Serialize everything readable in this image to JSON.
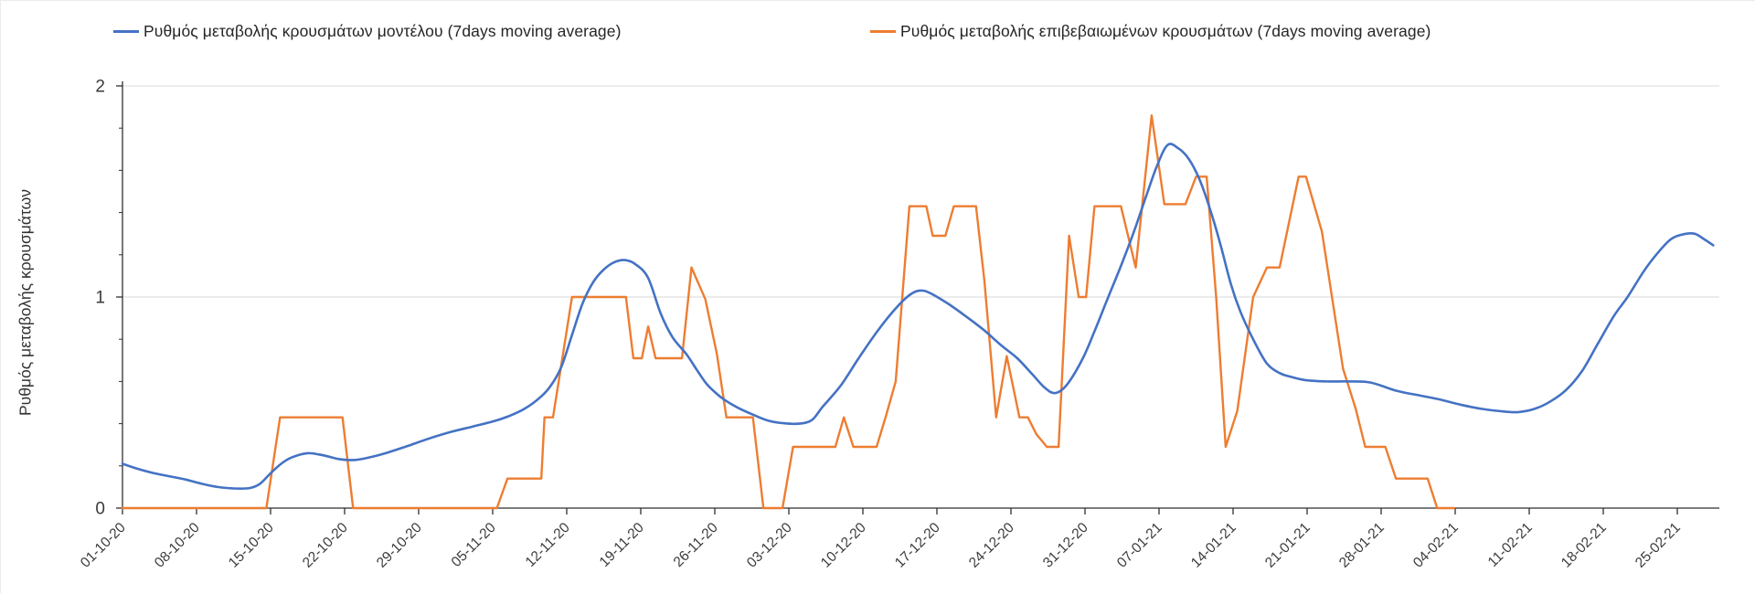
{
  "legend": {
    "items": [
      {
        "label": "Ρυθμός μεταβολής κρουσμάτων μοντέλου (7days moving average)",
        "color": "#4472C4"
      },
      {
        "label": "Ρυθμός μεταβολής επιβεβαιωμένων κρουσμάτων (7days moving average)",
        "color": "#ED7D31"
      }
    ]
  },
  "colors": {
    "model_line": "#4472C4",
    "confirmed_line": "#ED7D31",
    "gridline": "#d9d9d9",
    "axis": "#2f2f2f",
    "tick_text": "#3a3a3a"
  },
  "chart_data": {
    "type": "line",
    "title": "",
    "xlabel": "",
    "ylabel": "Ρυθμός μεταβολής κρουσμάτων",
    "ylim": [
      0,
      2
    ],
    "y_ticks": [
      0,
      1,
      2
    ],
    "y_tick_labels": [
      "0",
      "1",
      "2"
    ],
    "y_minor_tick_step": 0.2,
    "grid": "horizontal-only",
    "legend_position": "top",
    "x_unit": "day index, day 0 = 01-10-20, one tick per 7 days",
    "x_tick_labels": [
      "01-10-20",
      "08-10-20",
      "15-10-20",
      "22-10-20",
      "29-10-20",
      "05-11-20",
      "12-11-20",
      "19-11-20",
      "26-11-20",
      "03-12-20",
      "10-12-20",
      "17-12-20",
      "24-12-20",
      "31-12-20",
      "07-01-21",
      "14-01-21",
      "21-01-21",
      "28-01-21",
      "04-02-21",
      "11-02-21",
      "18-02-21",
      "25-02-21"
    ],
    "series": [
      {
        "name": "Ρυθμός μεταβολής κρουσμάτων μοντέλου (7days moving average)",
        "color": "#4472C4",
        "smooth": true,
        "points": [
          [
            0,
            0.21
          ],
          [
            1.5,
            0.185
          ],
          [
            3,
            0.165
          ],
          [
            4.5,
            0.15
          ],
          [
            6,
            0.135
          ],
          [
            7.5,
            0.115
          ],
          [
            9,
            0.1
          ],
          [
            10.5,
            0.093
          ],
          [
            12,
            0.095
          ],
          [
            13,
            0.115
          ],
          [
            14,
            0.165
          ],
          [
            15,
            0.21
          ],
          [
            16,
            0.24
          ],
          [
            17.5,
            0.26
          ],
          [
            19,
            0.25
          ],
          [
            20.5,
            0.232
          ],
          [
            22,
            0.228
          ],
          [
            23.5,
            0.242
          ],
          [
            25,
            0.262
          ],
          [
            27,
            0.295
          ],
          [
            29,
            0.33
          ],
          [
            31,
            0.36
          ],
          [
            33,
            0.385
          ],
          [
            35,
            0.41
          ],
          [
            36.5,
            0.435
          ],
          [
            38,
            0.47
          ],
          [
            39.5,
            0.525
          ],
          [
            40.5,
            0.58
          ],
          [
            41.5,
            0.67
          ],
          [
            42.5,
            0.82
          ],
          [
            43.5,
            0.97
          ],
          [
            44.5,
            1.07
          ],
          [
            45.5,
            1.13
          ],
          [
            46.5,
            1.165
          ],
          [
            47.5,
            1.175
          ],
          [
            48.5,
            1.155
          ],
          [
            49.7,
            1.09
          ],
          [
            50.9,
            0.92
          ],
          [
            52,
            0.81
          ],
          [
            53.3,
            0.73
          ],
          [
            54.3,
            0.655
          ],
          [
            55.2,
            0.59
          ],
          [
            56.1,
            0.545
          ],
          [
            57,
            0.51
          ],
          [
            58.2,
            0.475
          ],
          [
            59.5,
            0.445
          ],
          [
            61,
            0.415
          ],
          [
            62.5,
            0.402
          ],
          [
            64,
            0.4
          ],
          [
            65.2,
            0.418
          ],
          [
            66.2,
            0.48
          ],
          [
            67.9,
            0.58
          ],
          [
            69.6,
            0.71
          ],
          [
            71.4,
            0.84
          ],
          [
            73,
            0.94
          ],
          [
            74.3,
            1.005
          ],
          [
            75.3,
            1.03
          ],
          [
            76.3,
            1.02
          ],
          [
            78,
            0.97
          ],
          [
            79.7,
            0.91
          ],
          [
            81.4,
            0.845
          ],
          [
            83.1,
            0.77
          ],
          [
            84.6,
            0.71
          ],
          [
            86,
            0.635
          ],
          [
            87.2,
            0.57
          ],
          [
            88.2,
            0.545
          ],
          [
            89.3,
            0.585
          ],
          [
            90.8,
            0.71
          ],
          [
            92,
            0.85
          ],
          [
            93.2,
            1.0
          ],
          [
            94.5,
            1.16
          ],
          [
            95.7,
            1.32
          ],
          [
            96.8,
            1.48
          ],
          [
            97.8,
            1.62
          ],
          [
            98.8,
            1.72
          ],
          [
            99.8,
            1.705
          ],
          [
            100.8,
            1.655
          ],
          [
            101.8,
            1.56
          ],
          [
            102.8,
            1.42
          ],
          [
            103.8,
            1.25
          ],
          [
            104.8,
            1.06
          ],
          [
            105.7,
            0.93
          ],
          [
            107,
            0.79
          ],
          [
            108.2,
            0.685
          ],
          [
            109.4,
            0.64
          ],
          [
            110.6,
            0.62
          ],
          [
            112,
            0.605
          ],
          [
            114,
            0.6
          ],
          [
            116,
            0.6
          ],
          [
            118,
            0.595
          ],
          [
            120.5,
            0.555
          ],
          [
            122.5,
            0.535
          ],
          [
            124.5,
            0.515
          ],
          [
            126.5,
            0.49
          ],
          [
            128.5,
            0.47
          ],
          [
            130.5,
            0.458
          ],
          [
            132,
            0.455
          ],
          [
            133.5,
            0.47
          ],
          [
            135,
            0.505
          ],
          [
            136.5,
            0.56
          ],
          [
            138,
            0.65
          ],
          [
            139.5,
            0.78
          ],
          [
            141,
            0.91
          ],
          [
            142.3,
            1.0
          ],
          [
            143.8,
            1.12
          ],
          [
            145,
            1.2
          ],
          [
            146.3,
            1.27
          ],
          [
            147.4,
            1.295
          ],
          [
            148.6,
            1.3
          ],
          [
            149.5,
            1.275
          ],
          [
            150.4,
            1.245
          ]
        ]
      },
      {
        "name": "Ρυθμός μεταβολής επιβεβαιωμένων κρουσμάτων (7days moving average)",
        "color": "#ED7D31",
        "smooth": false,
        "points": [
          [
            0,
            0
          ],
          [
            13.6,
            0
          ],
          [
            14.9,
            0.43
          ],
          [
            20.8,
            0.43
          ],
          [
            21.8,
            0
          ],
          [
            35.4,
            0
          ],
          [
            36.4,
            0.14
          ],
          [
            39.6,
            0.14
          ],
          [
            39.9,
            0.43
          ],
          [
            40.7,
            0.43
          ],
          [
            42.5,
            1.0
          ],
          [
            47.6,
            1.0
          ],
          [
            48.3,
            0.71
          ],
          [
            49.1,
            0.71
          ],
          [
            49.7,
            0.86
          ],
          [
            50.4,
            0.71
          ],
          [
            52.9,
            0.71
          ],
          [
            53.8,
            1.14
          ],
          [
            55.1,
            0.99
          ],
          [
            56.2,
            0.73
          ],
          [
            57.1,
            0.43
          ],
          [
            59.6,
            0.43
          ],
          [
            60.6,
            0
          ],
          [
            62.4,
            0
          ],
          [
            63.4,
            0.29
          ],
          [
            67.4,
            0.29
          ],
          [
            68.2,
            0.43
          ],
          [
            69.1,
            0.29
          ],
          [
            71.3,
            0.29
          ],
          [
            72.2,
            0.44
          ],
          [
            73.1,
            0.6
          ],
          [
            74.4,
            1.43
          ],
          [
            76,
            1.43
          ],
          [
            76.6,
            1.29
          ],
          [
            77.8,
            1.29
          ],
          [
            78.6,
            1.43
          ],
          [
            80.7,
            1.43
          ],
          [
            81.5,
            1.07
          ],
          [
            82.6,
            0.43
          ],
          [
            83.6,
            0.72
          ],
          [
            84.8,
            0.43
          ],
          [
            85.6,
            0.43
          ],
          [
            86.4,
            0.35
          ],
          [
            87.4,
            0.29
          ],
          [
            88.5,
            0.29
          ],
          [
            89.5,
            1.29
          ],
          [
            90.4,
            1.0
          ],
          [
            91.1,
            1.0
          ],
          [
            91.9,
            1.43
          ],
          [
            94.4,
            1.43
          ],
          [
            95.8,
            1.14
          ],
          [
            97.3,
            1.86
          ],
          [
            98.5,
            1.44
          ],
          [
            100.5,
            1.44
          ],
          [
            101.5,
            1.57
          ],
          [
            102.5,
            1.57
          ],
          [
            103.4,
            1.0
          ],
          [
            104.3,
            0.29
          ],
          [
            105.4,
            0.46
          ],
          [
            106.9,
            1.0
          ],
          [
            108.2,
            1.14
          ],
          [
            109.4,
            1.14
          ],
          [
            111.2,
            1.57
          ],
          [
            111.9,
            1.57
          ],
          [
            113.4,
            1.31
          ],
          [
            115.4,
            0.66
          ],
          [
            116.6,
            0.47
          ],
          [
            117.5,
            0.29
          ],
          [
            119.4,
            0.29
          ],
          [
            120.4,
            0.14
          ],
          [
            123.4,
            0.14
          ],
          [
            124.3,
            0
          ],
          [
            125.9,
            0
          ]
        ]
      }
    ]
  }
}
